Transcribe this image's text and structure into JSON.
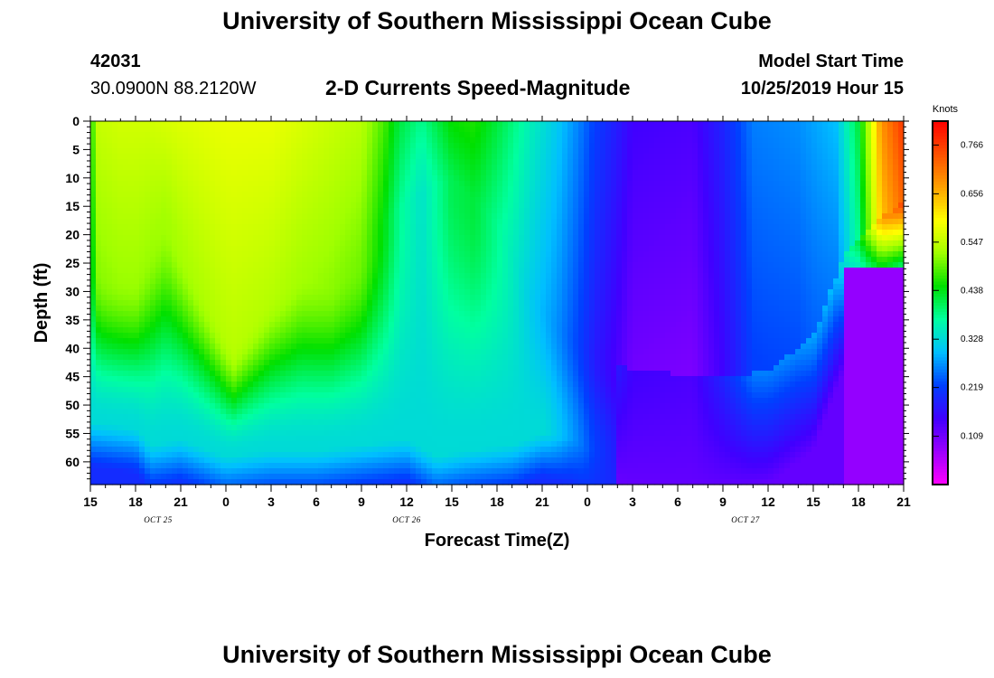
{
  "header": {
    "title": "University of Southern Mississippi Ocean Cube",
    "station_id": "42031",
    "coordinates": "30.0900N 88.2120W",
    "model_start_label": "Model Start Time",
    "model_start_value": "10/25/2019 Hour 15"
  },
  "footer": {
    "title": "University of Southern Mississippi Ocean Cube"
  },
  "chart_data": {
    "type": "heatmap",
    "title": "2-D Currents Speed-Magnitude",
    "xlabel": "Forecast Time(Z)",
    "ylabel": "Depth (ft)",
    "x_ticks": [
      "15",
      "18",
      "21",
      "0",
      "3",
      "6",
      "9",
      "12",
      "15",
      "18",
      "21",
      "0",
      "3",
      "6",
      "9",
      "12",
      "15",
      "18",
      "21"
    ],
    "x_hours_from_start": [
      0,
      3,
      6,
      9,
      12,
      15,
      18,
      21,
      24,
      27,
      30,
      33,
      36,
      39,
      42,
      45,
      48,
      51,
      54
    ],
    "date_labels": [
      {
        "text": "OCT 25",
        "hour": 4.5
      },
      {
        "text": "OCT 26",
        "hour": 21
      },
      {
        "text": "OCT 27",
        "hour": 43.5
      }
    ],
    "y_ticks": [
      0,
      5,
      10,
      15,
      20,
      25,
      30,
      35,
      40,
      45,
      50,
      55,
      60
    ],
    "ylim": [
      0,
      64
    ],
    "xlim": [
      0,
      54
    ],
    "colorbar": {
      "title": "Knots",
      "ticks": [
        0.766,
        0.656,
        0.547,
        0.438,
        0.328,
        0.219,
        0.109
      ],
      "range": [
        0,
        0.82
      ],
      "colors": [
        "#ff00ff",
        "#9b00ff",
        "#4000ff",
        "#0040ff",
        "#00bfff",
        "#00ffa0",
        "#00e000",
        "#a0ff00",
        "#ffff00",
        "#ffa000",
        "#ff5000",
        "#ff0000"
      ]
    },
    "surface_speed_knots": [
      {
        "hour": 0,
        "v": 0.4
      },
      {
        "hour": 0.3,
        "v": 0.55
      },
      {
        "hour": 2,
        "v": 0.56
      },
      {
        "hour": 4,
        "v": 0.56
      },
      {
        "hour": 6,
        "v": 0.57
      },
      {
        "hour": 9,
        "v": 0.58
      },
      {
        "hour": 12,
        "v": 0.58
      },
      {
        "hour": 15,
        "v": 0.56
      },
      {
        "hour": 18,
        "v": 0.54
      },
      {
        "hour": 19.5,
        "v": 0.48
      },
      {
        "hour": 20.5,
        "v": 0.42
      },
      {
        "hour": 22,
        "v": 0.38
      },
      {
        "hour": 24,
        "v": 0.45
      },
      {
        "hour": 25.5,
        "v": 0.46
      },
      {
        "hour": 27,
        "v": 0.42
      },
      {
        "hour": 29,
        "v": 0.36
      },
      {
        "hour": 31,
        "v": 0.31
      },
      {
        "hour": 32.5,
        "v": 0.26
      },
      {
        "hour": 33.5,
        "v": 0.22
      },
      {
        "hour": 35,
        "v": 0.18
      },
      {
        "hour": 36,
        "v": 0.15
      },
      {
        "hour": 40,
        "v": 0.14
      },
      {
        "hour": 42,
        "v": 0.19
      },
      {
        "hour": 44,
        "v": 0.26
      },
      {
        "hour": 47,
        "v": 0.27
      },
      {
        "hour": 49.5,
        "v": 0.3
      },
      {
        "hour": 51,
        "v": 0.42
      },
      {
        "hour": 52.5,
        "v": 0.68
      },
      {
        "hour": 54,
        "v": 0.77
      }
    ],
    "mixed_layer_depth_ft": [
      {
        "hour": 0,
        "d": 24
      },
      {
        "hour": 1,
        "d": 27
      },
      {
        "hour": 3,
        "d": 28
      },
      {
        "hour": 5,
        "d": 16
      },
      {
        "hour": 7,
        "d": 27
      },
      {
        "hour": 9.5,
        "d": 40
      },
      {
        "hour": 12,
        "d": 30
      },
      {
        "hour": 14,
        "d": 26
      },
      {
        "hour": 16,
        "d": 28
      },
      {
        "hour": 18,
        "d": 24
      },
      {
        "hour": 19.5,
        "d": 18
      },
      {
        "hour": 21,
        "d": 14
      },
      {
        "hour": 24,
        "d": 10
      },
      {
        "hour": 27,
        "d": 18
      },
      {
        "hour": 29,
        "d": 30
      },
      {
        "hour": 31,
        "d": 36
      },
      {
        "hour": 33,
        "d": 40
      },
      {
        "hour": 36,
        "d": 44
      },
      {
        "hour": 42,
        "d": 45
      },
      {
        "hour": 45,
        "d": 44
      },
      {
        "hour": 48,
        "d": 38
      },
      {
        "hour": 50,
        "d": 24
      },
      {
        "hour": 52,
        "d": 18
      },
      {
        "hour": 54,
        "d": 14
      }
    ],
    "bottom_layer_depth_ft": [
      {
        "hour": 0,
        "d": 53
      },
      {
        "hour": 3,
        "d": 54
      },
      {
        "hour": 4,
        "d": 57
      },
      {
        "hour": 6,
        "d": 56
      },
      {
        "hour": 9,
        "d": 59
      },
      {
        "hour": 12,
        "d": 58
      },
      {
        "hour": 15,
        "d": 58
      },
      {
        "hour": 18,
        "d": 57
      },
      {
        "hour": 21,
        "d": 56
      },
      {
        "hour": 23,
        "d": 59
      },
      {
        "hour": 25,
        "d": 58
      },
      {
        "hour": 28,
        "d": 57
      },
      {
        "hour": 30,
        "d": 55
      },
      {
        "hour": 32,
        "d": 56
      },
      {
        "hour": 33,
        "d": 58
      },
      {
        "hour": 36,
        "d": 60
      }
    ]
  }
}
